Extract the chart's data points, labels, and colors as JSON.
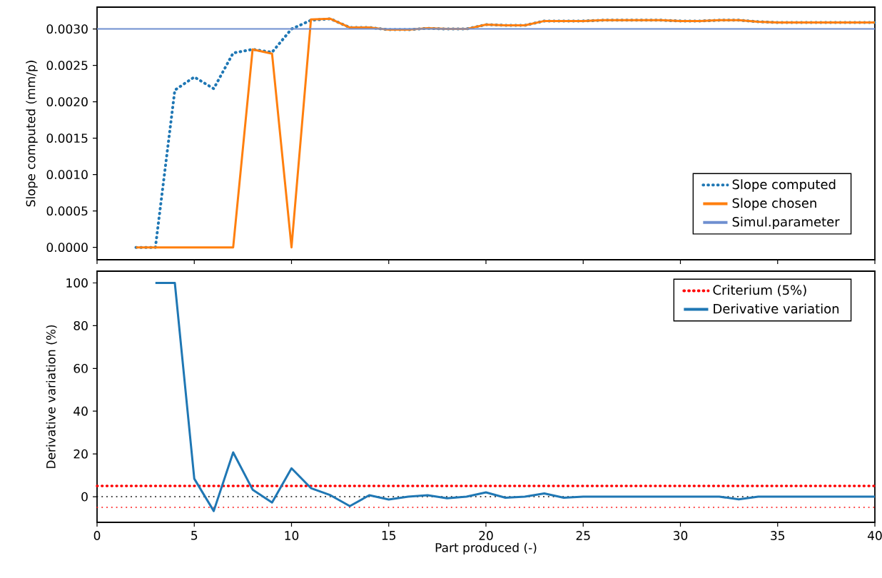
{
  "chart_data": [
    {
      "type": "line",
      "ylabel": "Slope computed (mm/p)",
      "xlim": [
        0,
        40
      ],
      "xticks": [
        0,
        5,
        10,
        15,
        20,
        25,
        30,
        35,
        40
      ],
      "ylim": [
        -0.00017,
        0.0033
      ],
      "yticks": [
        {
          "value": 0,
          "label": "0.0000"
        },
        {
          "value": 0.0005,
          "label": "0.0005"
        },
        {
          "value": 0.001,
          "label": "0.0010"
        },
        {
          "value": 0.0015,
          "label": "0.0015"
        },
        {
          "value": 0.002,
          "label": "0.0020"
        },
        {
          "value": 0.0025,
          "label": "0.0025"
        },
        {
          "value": 0.003,
          "label": "0.0030"
        }
      ],
      "tick_labels": "y",
      "grid": false,
      "legend": "bottom right",
      "series": [
        {
          "name": "Slope computed",
          "color": "#1f77b4",
          "line_style": "dotted",
          "x": [
            2,
            3,
            4,
            5,
            6,
            7,
            8,
            9,
            10,
            11,
            12,
            13,
            14,
            15,
            16,
            17,
            18,
            19,
            20,
            21,
            22,
            23,
            24,
            25,
            26,
            27,
            28,
            29,
            30,
            31,
            32,
            33,
            34,
            35,
            36,
            37,
            38,
            39,
            40
          ],
          "values": [
            0,
            0,
            0.00216,
            0.00234,
            0.00218,
            0.00267,
            0.00272,
            0.00268,
            0.003,
            0.00312,
            0.00314,
            0.00302,
            0.00302,
            0.00299,
            0.00299,
            0.00301,
            0.003,
            0.003,
            0.00306,
            0.00305,
            0.00305,
            0.00311,
            0.00311,
            0.00311,
            0.00312,
            0.00312,
            0.00312,
            0.00312,
            0.00311,
            0.00311,
            0.00312,
            0.00312,
            0.0031,
            0.00309,
            0.00309,
            0.00309,
            0.00309,
            0.00309,
            0.00309
          ]
        },
        {
          "name": "Slope chosen",
          "color": "#ff7f0e",
          "line_style": "solid",
          "x": [
            2,
            3,
            4,
            5,
            6,
            7,
            8,
            9,
            10,
            11,
            12,
            13,
            14,
            15,
            16,
            17,
            18,
            19,
            20,
            21,
            22,
            23,
            24,
            25,
            26,
            27,
            28,
            29,
            30,
            31,
            32,
            33,
            34,
            35,
            36,
            37,
            38,
            39,
            40
          ],
          "values": [
            0,
            0,
            0,
            0,
            0,
            0,
            0.00272,
            0.00266,
            0,
            0.00313,
            0.00314,
            0.00302,
            0.00302,
            0.00299,
            0.00299,
            0.00301,
            0.003,
            0.003,
            0.00306,
            0.00305,
            0.00305,
            0.00311,
            0.00311,
            0.00311,
            0.00312,
            0.00312,
            0.00312,
            0.00312,
            0.00311,
            0.00311,
            0.00312,
            0.00312,
            0.0031,
            0.00309,
            0.00309,
            0.00309,
            0.00309,
            0.00309,
            0.00309
          ]
        },
        {
          "name": "Simul.parameter",
          "color": "#6f8fd0",
          "line_style": "solid",
          "x": [
            0,
            40
          ],
          "values": [
            0.003,
            0.003
          ]
        }
      ]
    },
    {
      "type": "line",
      "xlabel": "Part produced (-)",
      "ylabel": "Derivative variation (%)",
      "xlim": [
        0,
        40
      ],
      "xticks": [
        0,
        5,
        10,
        15,
        20,
        25,
        30,
        35,
        40
      ],
      "ylim": [
        -12,
        105.5
      ],
      "yticks": [
        0,
        20,
        40,
        60,
        80,
        100
      ],
      "grid": false,
      "legend": "top right",
      "ref_lines": [
        {
          "axis": "y",
          "value": 5,
          "label": "Criterium (5%)",
          "color": "#ff0000",
          "line_style": "dotted"
        },
        {
          "axis": "y",
          "value": -5,
          "color": "#ff0000",
          "line_style": "dotted"
        },
        {
          "axis": "y",
          "value": 0,
          "color": "#000000",
          "line_style": "dotted"
        }
      ],
      "series": [
        {
          "name": "Derivative variation",
          "color": "#1f77b4",
          "line_style": "solid",
          "x": [
            3,
            4,
            5,
            6,
            7,
            8,
            9,
            10,
            11,
            12,
            13,
            14,
            15,
            16,
            17,
            18,
            19,
            20,
            21,
            22,
            23,
            24,
            25,
            26,
            27,
            28,
            29,
            30,
            31,
            32,
            33,
            34,
            35,
            36,
            37,
            38,
            39,
            40
          ],
          "values": [
            100,
            100,
            8.4,
            -6.7,
            20.7,
            3.3,
            -2.7,
            13.3,
            4,
            0.7,
            -4.4,
            0.7,
            -1.3,
            0,
            0.7,
            -0.7,
            0,
            2,
            -0.5,
            0,
            1.5,
            -0.5,
            0,
            0,
            0,
            0,
            0,
            0,
            0,
            0,
            -1.2,
            0,
            0,
            0,
            0,
            0,
            0,
            0
          ]
        }
      ]
    }
  ]
}
